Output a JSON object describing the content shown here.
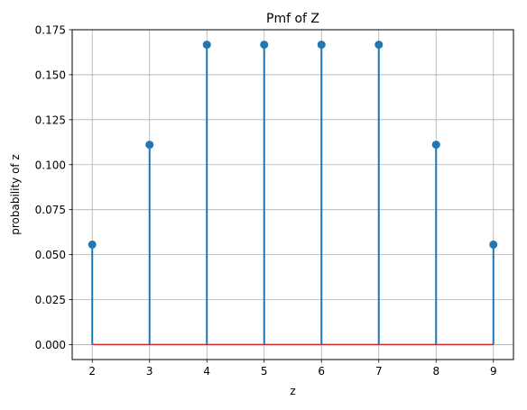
{
  "chart_data": {
    "type": "stem",
    "title": "Pmf of Z",
    "xlabel": "z",
    "ylabel": "probability of z",
    "x": [
      2,
      3,
      4,
      5,
      6,
      7,
      8,
      9
    ],
    "y": [
      0.0556,
      0.1111,
      0.1667,
      0.1667,
      0.1667,
      0.1667,
      0.1111,
      0.0556
    ],
    "xlim": [
      1.65,
      9.35
    ],
    "ylim": [
      -0.0083,
      0.175
    ],
    "xticks": [
      2,
      3,
      4,
      5,
      6,
      7,
      8,
      9
    ],
    "xtick_labels": [
      "2",
      "3",
      "4",
      "5",
      "6",
      "7",
      "8",
      "9"
    ],
    "yticks": [
      0,
      0.025,
      0.05,
      0.075,
      0.1,
      0.125,
      0.15,
      0.175
    ],
    "ytick_labels": [
      "0.000",
      "0.025",
      "0.050",
      "0.075",
      "0.100",
      "0.125",
      "0.150",
      "0.175"
    ],
    "grid": true,
    "colors": {
      "stem": "#1f77b4",
      "baseline": "#d62728",
      "grid": "#b0b0b0"
    }
  }
}
